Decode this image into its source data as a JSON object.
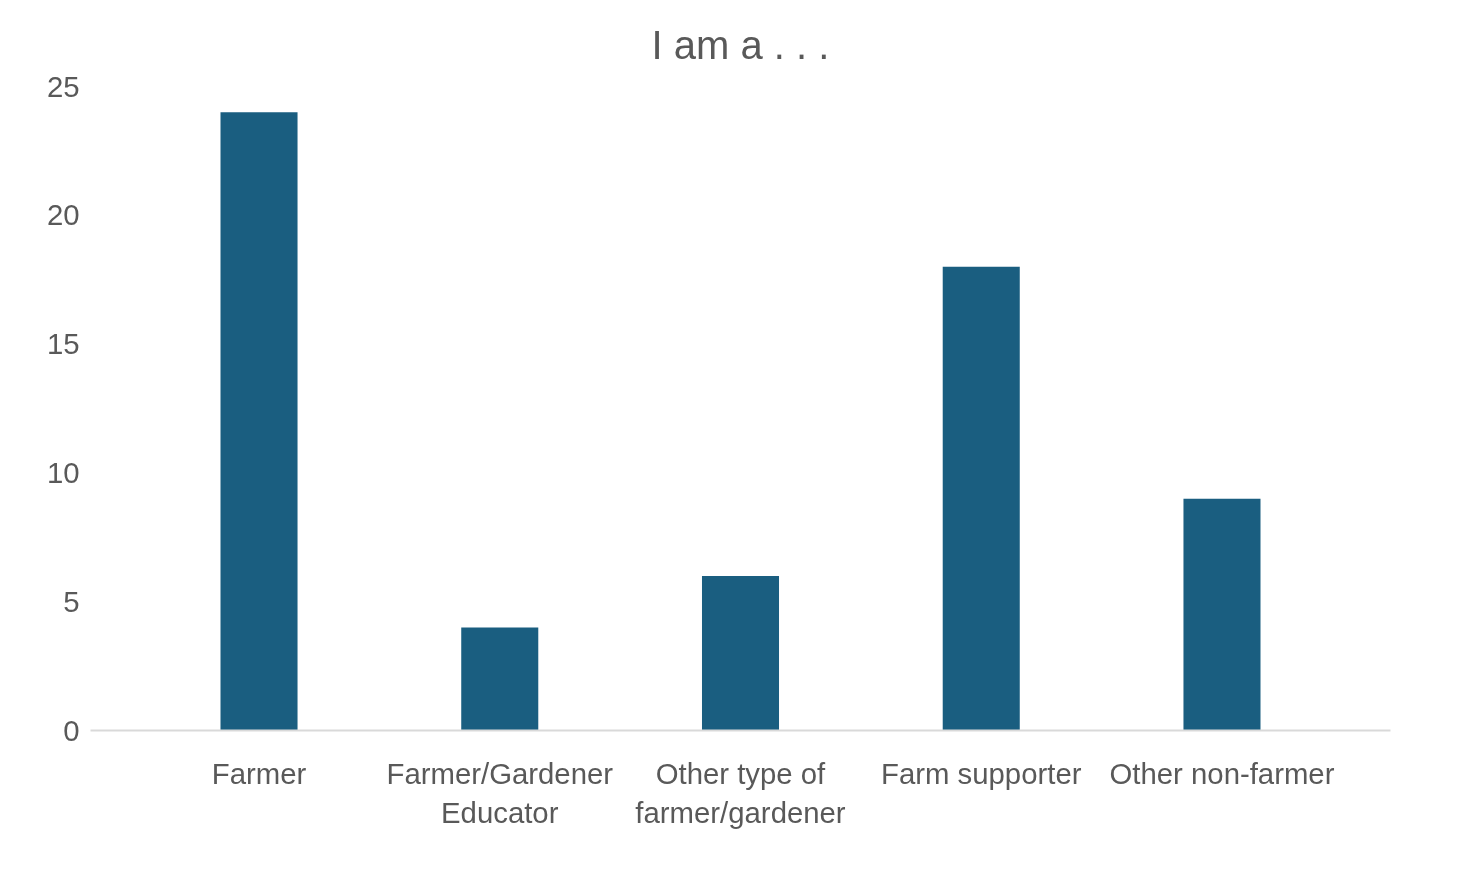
{
  "chart_data": {
    "type": "bar",
    "title": "I am a . . .",
    "categories": [
      "Farmer",
      "Farmer/Gardener Educator",
      "Other type of farmer/gardener",
      "Farm supporter",
      "Other non-farmer"
    ],
    "values": [
      24,
      4,
      6,
      18,
      9
    ],
    "color": "#1a5e80",
    "ylim": [
      0,
      25
    ],
    "yticks": [
      0,
      5,
      10,
      15,
      20,
      25
    ],
    "grid": false
  }
}
